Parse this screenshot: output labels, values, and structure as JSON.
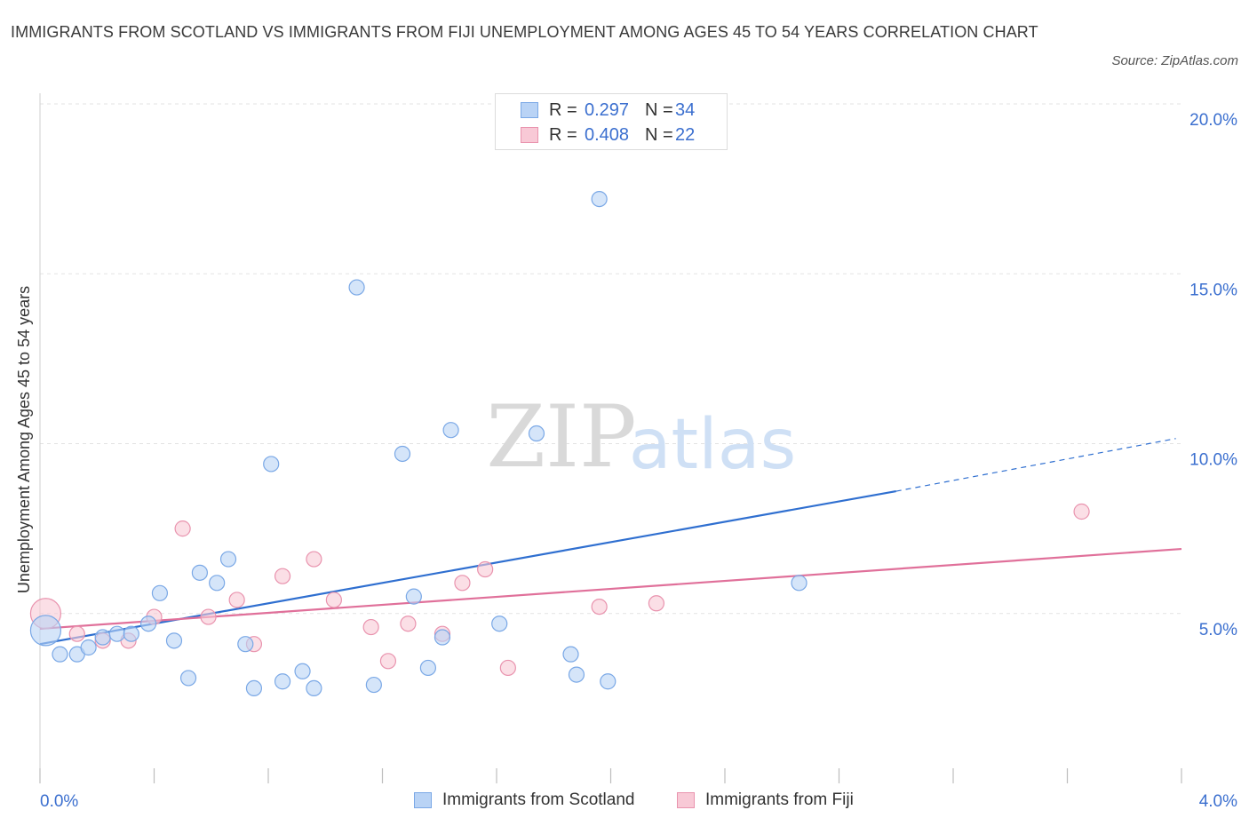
{
  "title": "IMMIGRANTS FROM SCOTLAND VS IMMIGRANTS FROM FIJI UNEMPLOYMENT AMONG AGES 45 TO 54 YEARS CORRELATION CHART",
  "source": "Source: ZipAtlas.com",
  "watermark": {
    "zip": "ZIP",
    "atlas": "atlas"
  },
  "legend": {
    "r_label": "R =",
    "n_label": "N =",
    "rows": [
      {
        "r": "0.297",
        "n": "34",
        "fill": "#b9d3f5",
        "stroke": "#7aa8e6"
      },
      {
        "r": "0.408",
        "n": "22",
        "fill": "#f8c9d6",
        "stroke": "#e993ae"
      }
    ]
  },
  "chart_data": {
    "type": "scatter",
    "title": "IMMIGRANTS FROM SCOTLAND VS IMMIGRANTS FROM FIJI UNEMPLOYMENT AMONG AGES 45 TO 54 YEARS CORRELATION CHART",
    "xlabel": "",
    "ylabel": "Unemployment Among Ages 45 to 54 years",
    "xlim": [
      0,
      4
    ],
    "ylim": [
      0,
      20
    ],
    "x_tick_labels": [
      "0.0%",
      "4.0%"
    ],
    "y_ticks": [
      5,
      10,
      15,
      20
    ],
    "y_tick_labels": [
      "5.0%",
      "10.0%",
      "15.0%",
      "20.0%"
    ],
    "series": [
      {
        "name": "Immigrants from Scotland",
        "color": "#7aa8e6",
        "fill": "#b9d3f5",
        "line_color": "#2f6fd0",
        "trend": {
          "x0": 0.0,
          "y0": 4.1,
          "x1": 3.0,
          "y1": 8.6,
          "dashed_to_x": 3.98,
          "dashed_to_y": 10.15
        },
        "points": [
          {
            "x": 0.02,
            "y": 4.5,
            "big": true
          },
          {
            "x": 0.07,
            "y": 3.8
          },
          {
            "x": 0.13,
            "y": 3.8
          },
          {
            "x": 0.17,
            "y": 4.0
          },
          {
            "x": 0.22,
            "y": 4.3
          },
          {
            "x": 0.27,
            "y": 4.4
          },
          {
            "x": 0.32,
            "y": 4.4
          },
          {
            "x": 0.38,
            "y": 4.7
          },
          {
            "x": 0.42,
            "y": 5.6
          },
          {
            "x": 0.47,
            "y": 4.2
          },
          {
            "x": 0.52,
            "y": 3.1
          },
          {
            "x": 0.56,
            "y": 6.2
          },
          {
            "x": 0.62,
            "y": 5.9
          },
          {
            "x": 0.66,
            "y": 6.6
          },
          {
            "x": 0.72,
            "y": 4.1
          },
          {
            "x": 0.75,
            "y": 2.8
          },
          {
            "x": 0.81,
            "y": 9.4
          },
          {
            "x": 0.85,
            "y": 3.0
          },
          {
            "x": 0.92,
            "y": 3.3
          },
          {
            "x": 0.96,
            "y": 2.8
          },
          {
            "x": 1.11,
            "y": 14.6
          },
          {
            "x": 1.17,
            "y": 2.9
          },
          {
            "x": 1.27,
            "y": 9.7
          },
          {
            "x": 1.31,
            "y": 5.5
          },
          {
            "x": 1.36,
            "y": 3.4
          },
          {
            "x": 1.41,
            "y": 4.3
          },
          {
            "x": 1.44,
            "y": 10.4
          },
          {
            "x": 1.61,
            "y": 4.7
          },
          {
            "x": 1.74,
            "y": 10.3
          },
          {
            "x": 1.86,
            "y": 3.8
          },
          {
            "x": 1.88,
            "y": 3.2
          },
          {
            "x": 1.96,
            "y": 17.2
          },
          {
            "x": 1.99,
            "y": 3.0
          },
          {
            "x": 2.66,
            "y": 5.9
          }
        ]
      },
      {
        "name": "Immigrants from Fiji",
        "color": "#e993ae",
        "fill": "#f8c9d6",
        "line_color": "#e0709a",
        "trend": {
          "x0": 0.0,
          "y0": 4.55,
          "x1": 4.0,
          "y1": 6.9
        },
        "points": [
          {
            "x": 0.02,
            "y": 5.0,
            "big": true
          },
          {
            "x": 0.13,
            "y": 4.4
          },
          {
            "x": 0.22,
            "y": 4.2
          },
          {
            "x": 0.31,
            "y": 4.2
          },
          {
            "x": 0.4,
            "y": 4.9
          },
          {
            "x": 0.5,
            "y": 7.5
          },
          {
            "x": 0.59,
            "y": 4.9
          },
          {
            "x": 0.69,
            "y": 5.4
          },
          {
            "x": 0.75,
            "y": 4.1
          },
          {
            "x": 0.85,
            "y": 6.1
          },
          {
            "x": 0.96,
            "y": 6.6
          },
          {
            "x": 1.03,
            "y": 5.4
          },
          {
            "x": 1.16,
            "y": 4.6
          },
          {
            "x": 1.22,
            "y": 3.6
          },
          {
            "x": 1.29,
            "y": 4.7
          },
          {
            "x": 1.41,
            "y": 4.4
          },
          {
            "x": 1.48,
            "y": 5.9
          },
          {
            "x": 1.56,
            "y": 6.3
          },
          {
            "x": 1.64,
            "y": 3.4
          },
          {
            "x": 1.96,
            "y": 5.2
          },
          {
            "x": 2.16,
            "y": 5.3
          },
          {
            "x": 3.65,
            "y": 8.0
          }
        ]
      }
    ]
  }
}
